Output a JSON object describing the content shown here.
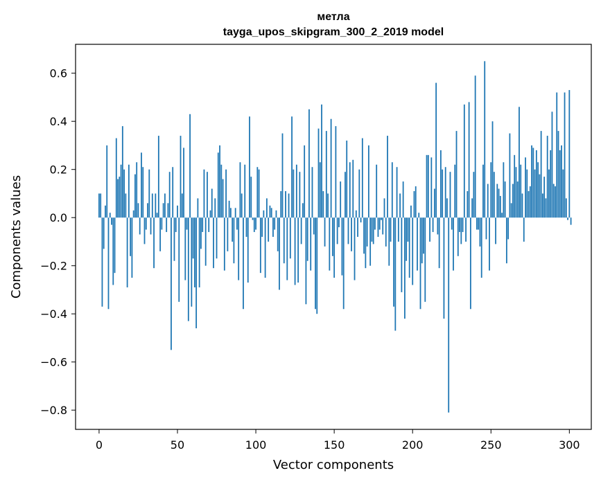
{
  "chart_data": {
    "type": "bar",
    "title": "метла",
    "subtitle": "tayga_upos_skipgram_300_2_2019 model",
    "xlabel": "Vector components",
    "ylabel": "Components values",
    "xlim": [
      -15,
      314
    ],
    "ylim": [
      -0.88,
      0.72
    ],
    "xticks": [
      0,
      50,
      100,
      150,
      200,
      250,
      300
    ],
    "yticks": [
      -0.8,
      -0.6,
      -0.4,
      -0.2,
      0.0,
      0.2,
      0.4,
      0.6
    ],
    "ytick_labels": [
      "−0.8",
      "−0.6",
      "−0.4",
      "−0.2",
      "0.0",
      "0.2",
      "0.4",
      "0.6"
    ],
    "bar_color": "#1f77b4",
    "grid": false,
    "legend": "none",
    "values": [
      0.1,
      0.1,
      -0.37,
      -0.13,
      0.05,
      0.3,
      -0.38,
      0.02,
      -0.03,
      -0.28,
      -0.23,
      0.33,
      0.16,
      0.17,
      0.22,
      0.38,
      0.2,
      0.1,
      -0.29,
      0.22,
      -0.16,
      -0.25,
      0.03,
      0.18,
      0.23,
      0.06,
      -0.07,
      0.27,
      0.21,
      -0.11,
      -0.05,
      0.06,
      0.2,
      -0.07,
      0.1,
      -0.21,
      0.1,
      0.02,
      0.34,
      -0.14,
      -0.05,
      0.06,
      0.1,
      -0.06,
      0.06,
      0.19,
      -0.55,
      0.21,
      -0.18,
      -0.06,
      0.05,
      -0.35,
      0.34,
      0.1,
      0.29,
      -0.26,
      -0.05,
      -0.43,
      0.43,
      -0.37,
      -0.17,
      -0.29,
      -0.46,
      0.08,
      -0.29,
      -0.13,
      -0.06,
      0.2,
      -0.2,
      0.19,
      -0.06,
      0.03,
      0.12,
      -0.21,
      0.08,
      -0.17,
      0.27,
      0.3,
      0.22,
      0.16,
      -0.22,
      0.2,
      -0.14,
      0.07,
      0.04,
      -0.1,
      -0.19,
      0.04,
      -0.05,
      -0.26,
      0.23,
      0.1,
      -0.38,
      0.22,
      -0.08,
      -0.27,
      0.42,
      0.17,
      -0.01,
      -0.06,
      -0.05,
      0.21,
      0.2,
      -0.23,
      -0.08,
      0.03,
      -0.25,
      0.08,
      -0.1,
      0.05,
      0.04,
      -0.08,
      -0.05,
      0.03,
      -0.14,
      -0.3,
      0.11,
      0.35,
      -0.19,
      0.11,
      -0.26,
      0.1,
      -0.17,
      0.42,
      0.2,
      -0.28,
      0.22,
      -0.27,
      0.19,
      -0.11,
      0.06,
      0.3,
      -0.36,
      -0.18,
      0.45,
      -0.22,
      0.21,
      -0.07,
      -0.38,
      -0.4,
      0.37,
      0.23,
      0.47,
      0.11,
      -0.12,
      0.36,
      0.1,
      -0.22,
      0.41,
      -0.16,
      -0.25,
      0.38,
      -0.11,
      -0.04,
      0.15,
      -0.24,
      -0.38,
      0.19,
      0.32,
      -0.11,
      0.23,
      -0.14,
      0.24,
      -0.26,
      0.03,
      -0.08,
      0.2,
      -0.02,
      0.33,
      -0.15,
      -0.21,
      -0.12,
      0.3,
      -0.2,
      -0.1,
      -0.11,
      -0.05,
      0.22,
      -0.08,
      -0.05,
      -0.01,
      -0.07,
      0.08,
      -0.12,
      0.34,
      -0.2,
      -0.1,
      0.23,
      -0.37,
      -0.47,
      0.21,
      -0.1,
      0.1,
      -0.31,
      0.15,
      -0.42,
      -0.18,
      -0.1,
      -0.25,
      0.05,
      -0.28,
      0.11,
      0.13,
      -0.22,
      0.02,
      -0.38,
      -0.19,
      -0.15,
      -0.35,
      0.26,
      0.26,
      -0.1,
      0.25,
      -0.06,
      0.12,
      0.56,
      -0.07,
      -0.21,
      0.28,
      0.2,
      -0.42,
      0.21,
      0.08,
      -0.81,
      0.19,
      -0.05,
      -0.22,
      0.22,
      0.36,
      -0.16,
      -0.06,
      -0.11,
      -0.06,
      0.47,
      -0.1,
      0.11,
      0.48,
      -0.38,
      0.08,
      0.19,
      0.59,
      -0.05,
      -0.05,
      -0.12,
      -0.25,
      0.22,
      0.65,
      -0.09,
      0.14,
      -0.22,
      0.23,
      0.4,
      0.19,
      -0.11,
      0.14,
      0.12,
      0.09,
      0.02,
      0.23,
      0.15,
      -0.19,
      -0.09,
      0.35,
      0.06,
      0.14,
      0.26,
      0.21,
      0.15,
      0.46,
      0.22,
      0.1,
      -0.1,
      0.25,
      0.2,
      0.11,
      0.13,
      0.3,
      0.29,
      0.2,
      0.28,
      0.23,
      0.18,
      0.36,
      0.1,
      0.17,
      0.08,
      0.34,
      0.2,
      0.28,
      0.44,
      0.14,
      0.13,
      0.52,
      0.36,
      0.28,
      0.3,
      0.2,
      0.52,
      0.08,
      -0.01,
      0.53,
      -0.03
    ]
  }
}
